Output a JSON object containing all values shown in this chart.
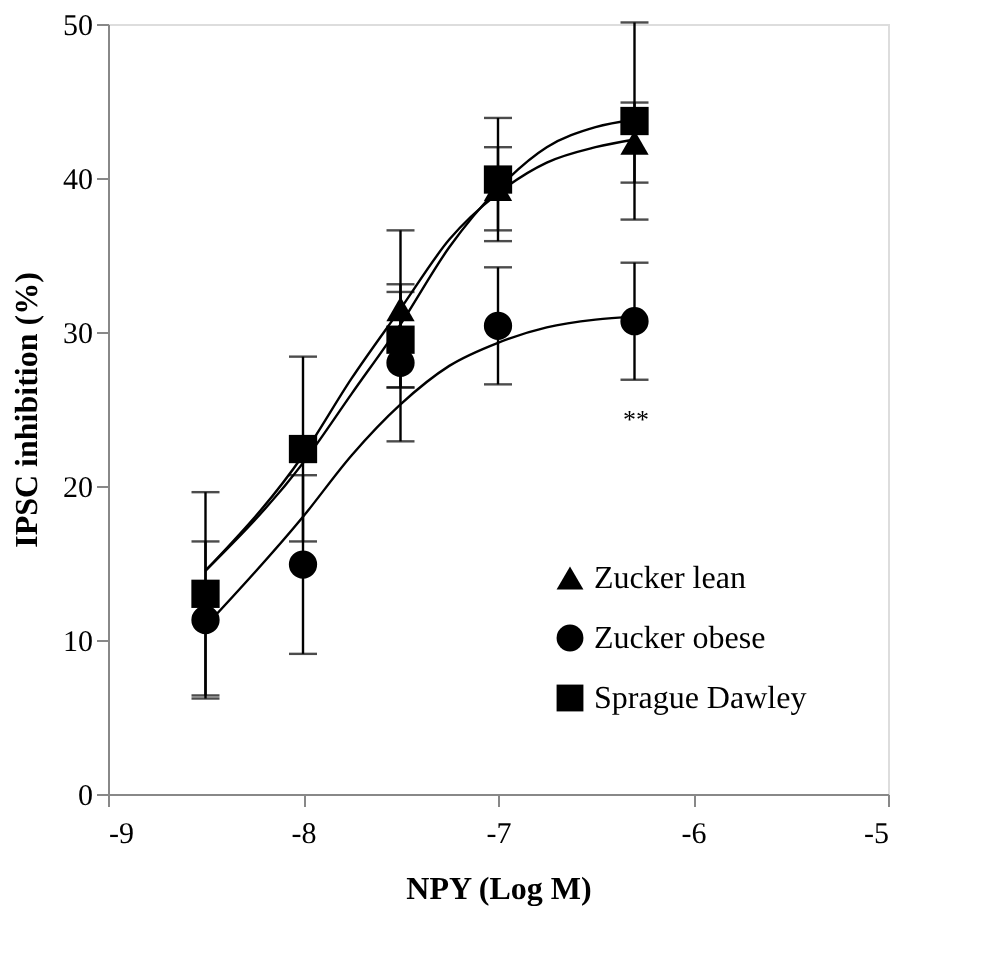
{
  "chart_data": {
    "type": "scatter",
    "xlabel": "NPY (Log M)",
    "ylabel": "IPSC inhibition (%)",
    "xlim": [
      -9,
      -5
    ],
    "xticks": [
      -9,
      -8,
      -7,
      -6,
      -5
    ],
    "ylim": [
      0,
      50
    ],
    "yticks": [
      0,
      10,
      20,
      30,
      40,
      50
    ],
    "grid": false,
    "legend": "bottom right",
    "annotations": [
      "**"
    ],
    "series": [
      {
        "name": "Zucker lean",
        "marker": "triangle",
        "color": "#000000",
        "x": [
          -7.5,
          -7,
          -6.3
        ],
        "values": [
          31.5,
          39.3,
          42.3
        ],
        "errors": [
          5.1,
          2.7,
          2.6
        ]
      },
      {
        "name": "Zucker obese",
        "marker": "circle",
        "color": "#000000",
        "x": [
          -8.5,
          -8,
          -7.5,
          -7,
          -6.3
        ],
        "values": [
          11.3,
          14.9,
          28.0,
          30.4,
          30.7
        ],
        "errors": [
          5.1,
          5.8,
          5.1,
          3.8,
          3.8
        ]
      },
      {
        "name": "Sprague Dawley",
        "marker": "square",
        "color": "#000000",
        "x": [
          -8.5,
          -8,
          -7.5,
          -7,
          -6.3
        ],
        "values": [
          13.0,
          22.4,
          29.5,
          39.9,
          43.7
        ],
        "errors": [
          6.6,
          6.0,
          3.1,
          4.0,
          6.4
        ]
      },
      {
        "type": "line",
        "marker": "none",
        "color": "#000000",
        "x": [
          -8.5,
          -8,
          -7.75,
          -7.5,
          -7.25,
          -7,
          -6.75,
          -6.5,
          -6.3
        ],
        "values": [
          14.5,
          22,
          27,
          31.5,
          36,
          39.0,
          41,
          42,
          42.5
        ]
      },
      {
        "type": "line",
        "marker": "none",
        "color": "#000000",
        "x": [
          -8.5,
          -8,
          -7.75,
          -7.5,
          -7.25,
          -7,
          -6.75,
          -6.5,
          -6.3
        ],
        "values": [
          14.5,
          21.5,
          26,
          30.5,
          35.5,
          39.3,
          42,
          43.3,
          43.8
        ]
      },
      {
        "type": "line",
        "marker": "none",
        "color": "#000000",
        "x": [
          -8.5,
          -8,
          -7.75,
          -7.5,
          -7.25,
          -7,
          -6.75,
          -6.5,
          -6.3
        ],
        "values": [
          10.9,
          18,
          22,
          25.3,
          27.8,
          29.3,
          30.3,
          30.8,
          31.0
        ]
      }
    ]
  }
}
